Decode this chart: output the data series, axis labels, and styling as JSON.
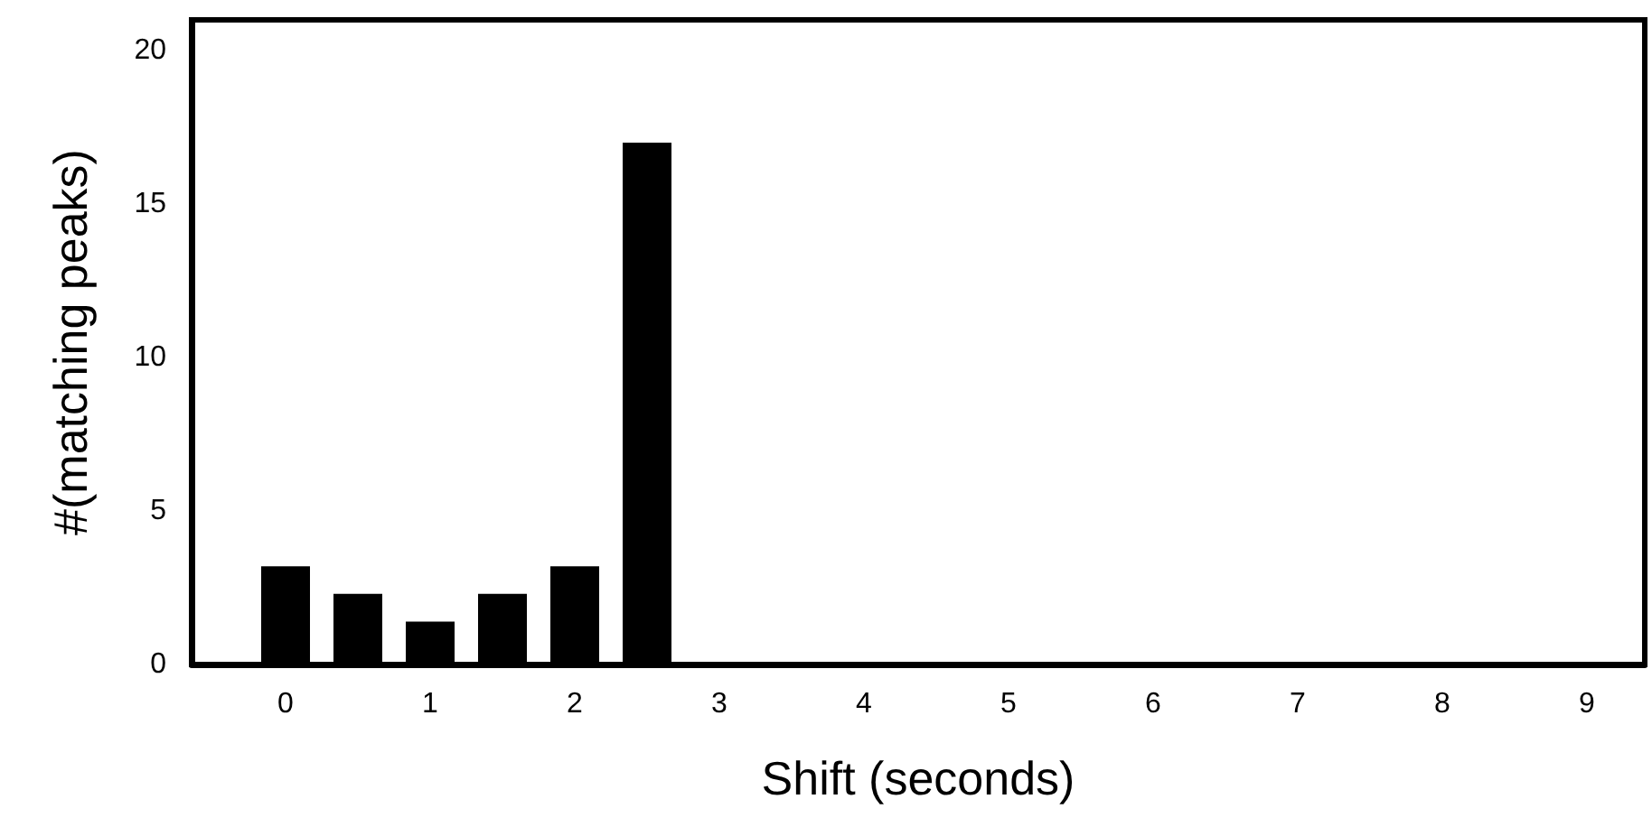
{
  "chart_data": {
    "type": "bar",
    "xlabel": "Shift (seconds)",
    "ylabel": "#(matching peaks)",
    "x": [
      0,
      0.5,
      1,
      1.5,
      2,
      2.5
    ],
    "values": [
      3.2,
      2.3,
      1.4,
      2.3,
      3.2,
      17
    ],
    "color": "#000000",
    "xlim": [
      -0.65,
      9.4
    ],
    "xticks": [
      0,
      1,
      2,
      3,
      4,
      5,
      6,
      7,
      8,
      9
    ],
    "ylim": [
      0,
      21
    ],
    "yticks": [
      0,
      5,
      10,
      15,
      20
    ]
  }
}
